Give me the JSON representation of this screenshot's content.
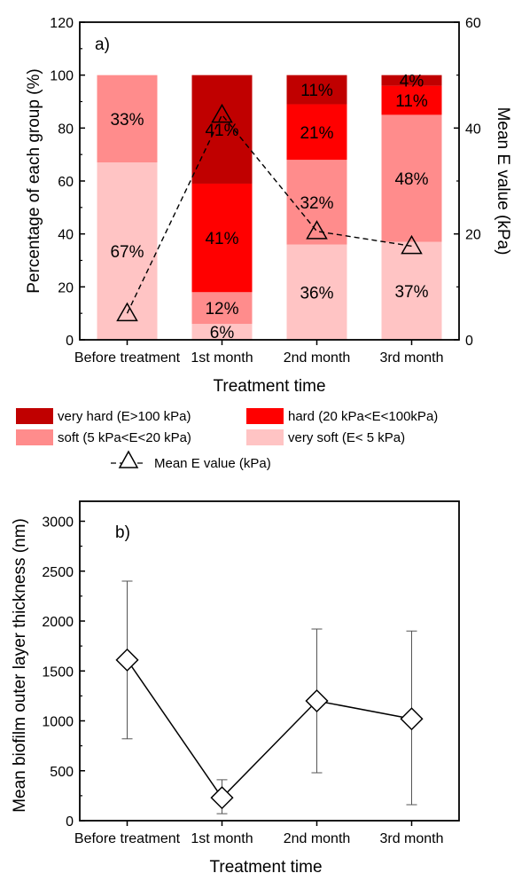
{
  "chart_data": [
    {
      "panel_label": "a)",
      "type": "bar",
      "stacked": true,
      "categories": [
        "Before treatment",
        "1st month",
        "2nd month",
        "3rd month"
      ],
      "xlabel": "Treatment time",
      "ylabel": "Percentage of each group (%)",
      "ylim": [
        0,
        120
      ],
      "yticks": [
        0,
        20,
        40,
        60,
        80,
        100,
        120
      ],
      "y2label": "Mean E value (kPa)",
      "y2lim": [
        0,
        60
      ],
      "y2ticks": [
        0,
        20,
        40,
        60
      ],
      "legend_position": "below",
      "colors": {
        "very_soft": "#ffc4c4",
        "soft": "#ff8c8c",
        "hard": "#ff0000",
        "very_hard": "#c00000",
        "line": "#000000"
      },
      "series": [
        {
          "name": "very soft (E< 5 kPa)",
          "key": "very_soft",
          "values": [
            67,
            6,
            36,
            37
          ],
          "labels": [
            "67%",
            "6%",
            "36%",
            "37%"
          ],
          "label_color": "black"
        },
        {
          "name": "soft (5 kPa<E<20 kPa)",
          "key": "soft",
          "values": [
            33,
            12,
            32,
            48
          ],
          "labels": [
            "33%",
            "12%",
            "32%",
            "48%"
          ],
          "label_color": "black"
        },
        {
          "name": "hard (20 kPa<E<100kPa)",
          "key": "hard",
          "values": [
            0,
            41,
            21,
            11
          ],
          "labels": [
            "",
            "41%",
            "21%",
            "11%"
          ],
          "label_color": "white"
        },
        {
          "name": "very hard (E>100 kPa)",
          "key": "very_hard",
          "values": [
            0,
            41,
            11,
            4
          ],
          "labels": [
            "",
            "41%",
            "11%",
            "4%"
          ],
          "label_color": "white"
        }
      ],
      "line_series": {
        "name": "Mean E value (kPa)",
        "axis": "right",
        "marker": "triangle",
        "line_style": "dashed",
        "values": [
          5,
          42.5,
          20.5,
          17.7
        ]
      }
    },
    {
      "panel_label": "b)",
      "type": "line",
      "categories": [
        "Before treatment",
        "1st month",
        "2nd month",
        "3rd month"
      ],
      "xlabel": "Treatment time",
      "ylabel": "Mean biofilm outer layer thickness (nm)",
      "ylim": [
        0,
        3200
      ],
      "yticks": [
        0,
        500,
        1000,
        1500,
        2000,
        2500,
        3000
      ],
      "marker": "diamond",
      "series": [
        {
          "values": [
            1610,
            230,
            1200,
            1020
          ],
          "error_low": [
            820,
            70,
            480,
            160
          ],
          "error_high": [
            2400,
            410,
            1920,
            1900
          ]
        }
      ]
    }
  ]
}
